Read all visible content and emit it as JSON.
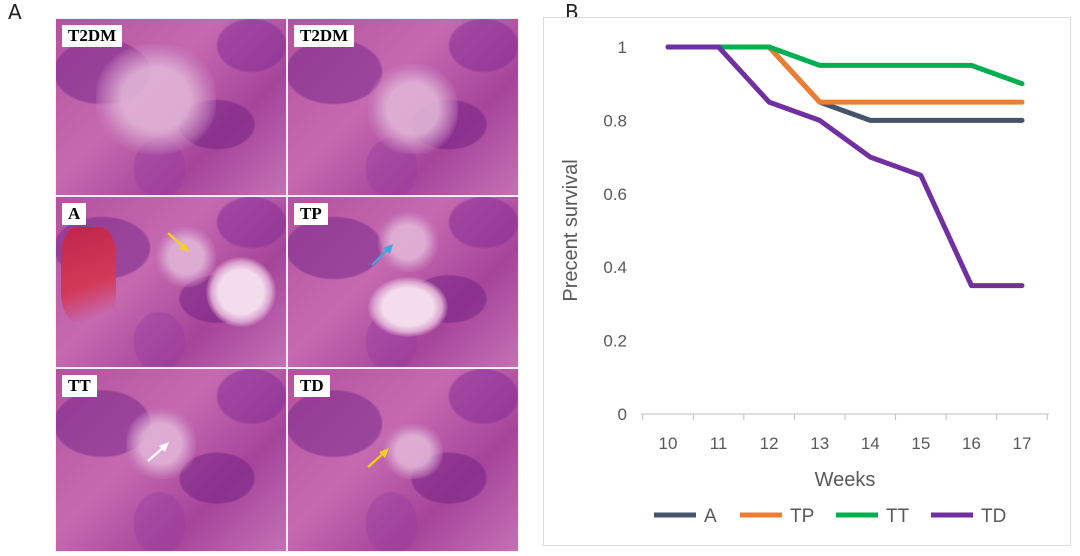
{
  "panel_a": {
    "letter": "A",
    "tiles": [
      {
        "label": "T2DM"
      },
      {
        "label": "T2DM"
      },
      {
        "label": "A"
      },
      {
        "label": "TP"
      },
      {
        "label": "TT"
      },
      {
        "label": "TD"
      }
    ],
    "arrow_colors": {
      "A": "#f2d21a",
      "TP": "#3aa8e0",
      "TT": "#ffffff",
      "TD": "#f2d21a"
    }
  },
  "panel_b": {
    "letter": "B"
  },
  "chart_data": {
    "type": "line",
    "ylabel": "Precent survival",
    "xlabel": "Weeks",
    "x": [
      10,
      11,
      12,
      13,
      14,
      15,
      16,
      17
    ],
    "x_ticks": [
      "10",
      "11",
      "12",
      "13",
      "14",
      "15",
      "16",
      "17"
    ],
    "y_ticks": [
      "0",
      "0.2",
      "0.4",
      "0.6",
      "0.8",
      "1"
    ],
    "ylim": [
      0,
      1
    ],
    "grid": false,
    "legend_position": "bottom",
    "series": [
      {
        "name": "A",
        "color": "#44546a",
        "values": [
          1,
          1,
          1,
          0.85,
          0.8,
          0.8,
          0.8,
          0.8
        ]
      },
      {
        "name": "TP",
        "color": "#ed7d31",
        "values": [
          1,
          1,
          1,
          0.85,
          0.85,
          0.85,
          0.85,
          0.85
        ]
      },
      {
        "name": "TT",
        "color": "#00b050",
        "values": [
          1,
          1,
          1,
          0.95,
          0.95,
          0.95,
          0.95,
          0.9
        ]
      },
      {
        "name": "TD",
        "color": "#7030a0",
        "values": [
          1,
          1,
          0.85,
          0.8,
          0.7,
          0.65,
          0.35,
          0.35
        ]
      }
    ]
  }
}
